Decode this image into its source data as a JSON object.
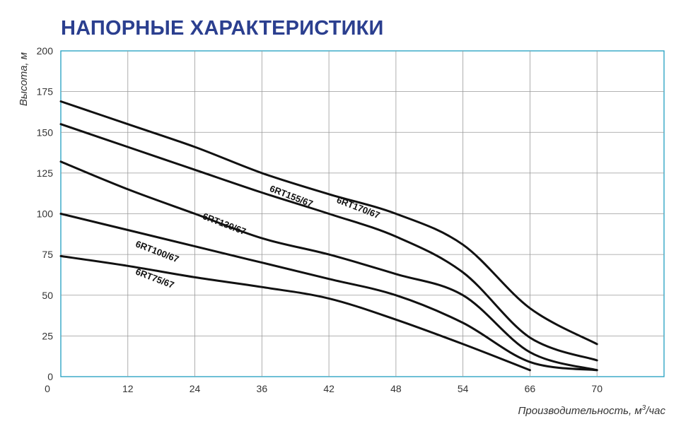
{
  "chart_data": {
    "type": "line",
    "title": "НАПОРНЫЕ ХАРАКТЕРИСТИКИ",
    "ylabel": "Высота, м",
    "xlabel_prefix": "Производительность, м",
    "xlabel_sup": "3",
    "xlabel_suffix": "/час",
    "y_ticks": [
      "0",
      "25",
      "50",
      "75",
      "100",
      "125",
      "150",
      "175",
      "200"
    ],
    "x_ticks": [
      "12",
      "24",
      "36",
      "42",
      "48",
      "54",
      "66",
      "70"
    ],
    "ylim": [
      0,
      200
    ],
    "grid": true,
    "series": [
      {
        "name": "6RT170/67",
        "label_x": "42",
        "label_y": 107,
        "points": [
          [
            "0",
            169
          ],
          [
            "12",
            155
          ],
          [
            "24",
            141
          ],
          [
            "36",
            125
          ],
          [
            "42",
            112
          ],
          [
            "48",
            100
          ],
          [
            "54",
            81
          ],
          [
            "66",
            42
          ],
          [
            "70",
            20
          ]
        ]
      },
      {
        "name": "6RT155/67",
        "label_x": "36",
        "label_y": 114,
        "points": [
          [
            "0",
            155
          ],
          [
            "12",
            141
          ],
          [
            "24",
            127
          ],
          [
            "36",
            113
          ],
          [
            "42",
            100
          ],
          [
            "48",
            86
          ],
          [
            "54",
            64
          ],
          [
            "66",
            24
          ],
          [
            "70",
            10
          ]
        ]
      },
      {
        "name": "6RT130/67",
        "label_x": "24",
        "label_y": 97,
        "points": [
          [
            "0",
            132
          ],
          [
            "12",
            115
          ],
          [
            "24",
            100
          ],
          [
            "36",
            85
          ],
          [
            "42",
            75
          ],
          [
            "48",
            63
          ],
          [
            "54",
            50
          ],
          [
            "66",
            15
          ],
          [
            "70",
            4
          ]
        ]
      },
      {
        "name": "6RT100/67",
        "label_x": "12",
        "label_y": 80,
        "points": [
          [
            "0",
            100
          ],
          [
            "12",
            90
          ],
          [
            "24",
            80
          ],
          [
            "36",
            70
          ],
          [
            "42",
            60
          ],
          [
            "48",
            50
          ],
          [
            "54",
            33
          ],
          [
            "66",
            9
          ],
          [
            "70",
            4
          ]
        ]
      },
      {
        "name": "6RT75/67",
        "label_x": "12",
        "label_y": 63,
        "points": [
          [
            "0",
            74
          ],
          [
            "12",
            68
          ],
          [
            "24",
            61
          ],
          [
            "36",
            55
          ],
          [
            "42",
            48
          ],
          [
            "48",
            35
          ],
          [
            "54",
            20
          ],
          [
            "66",
            4
          ]
        ]
      }
    ]
  }
}
